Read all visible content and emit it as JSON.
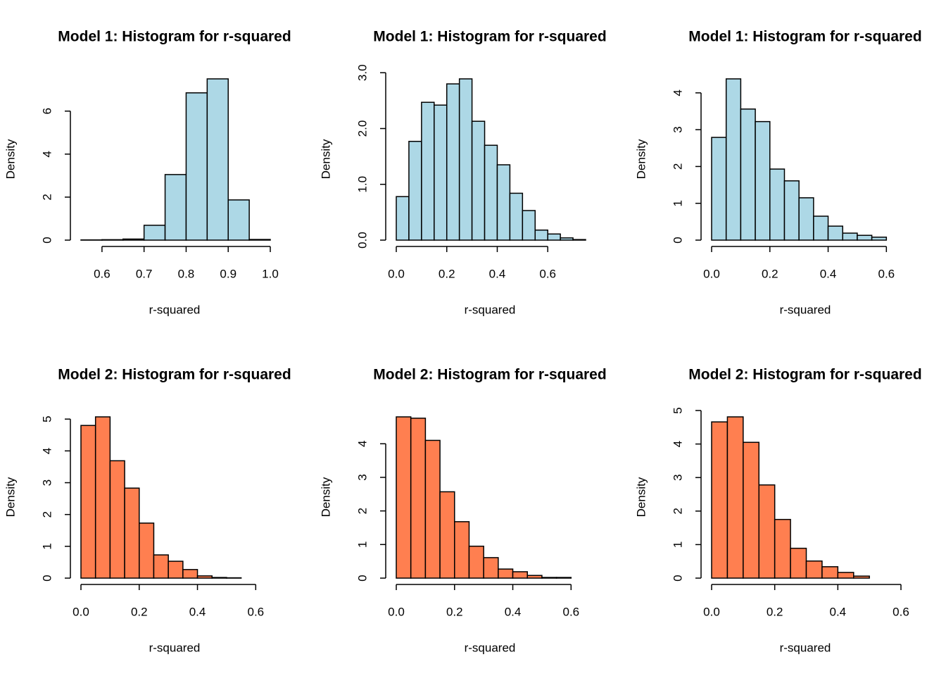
{
  "chart_data": [
    {
      "type": "histogram",
      "title": "Model 1: Histogram for r-squared",
      "xlabel": "r-squared",
      "ylabel": "Density",
      "color": "#add8e6",
      "bins": [
        0.55,
        0.6,
        0.65,
        0.7,
        0.75,
        0.8,
        0.85,
        0.9,
        0.95,
        1.0
      ],
      "values": [
        0.01,
        0.02,
        0.05,
        0.69,
        3.05,
        6.85,
        7.5,
        1.87,
        0.03
      ],
      "xlim": [
        0.55,
        1.0
      ],
      "ylim": [
        0,
        7.5
      ],
      "xticks": [
        0.6,
        0.7,
        0.8,
        0.9,
        {
          "value": 1.0,
          "label": "1.0"
        }
      ],
      "yticks": [
        0,
        2,
        4,
        6
      ]
    },
    {
      "type": "histogram",
      "title": "Model 1: Histogram for r-squared",
      "xlabel": "r-squared",
      "ylabel": "Density",
      "color": "#add8e6",
      "bins": [
        0,
        0.05,
        0.1,
        0.15,
        0.2,
        0.25,
        0.3,
        0.35,
        0.4,
        0.45,
        0.5,
        0.55,
        0.6,
        0.65,
        0.7,
        0.75
      ],
      "values": [
        0.78,
        1.77,
        2.47,
        2.42,
        2.8,
        2.89,
        2.13,
        1.7,
        1.35,
        0.84,
        0.53,
        0.18,
        0.11,
        0.04,
        0.01
      ],
      "xlim": [
        0,
        0.75
      ],
      "ylim": [
        0,
        2.89
      ],
      "xticks": [
        {
          "value": 0,
          "label": "0.0"
        },
        0.2,
        0.4,
        0.6
      ],
      "yticks": [
        {
          "value": 0,
          "label": "0.0"
        },
        {
          "value": 1,
          "label": "1.0"
        },
        {
          "value": 2,
          "label": "2.0"
        },
        {
          "value": 3,
          "label": "3.0"
        }
      ]
    },
    {
      "type": "histogram",
      "title": "Model 1: Histogram for r-squared",
      "xlabel": "r-squared",
      "ylabel": "Density",
      "color": "#add8e6",
      "bins": [
        0,
        0.05,
        0.1,
        0.15,
        0.2,
        0.25,
        0.3,
        0.35,
        0.4,
        0.45,
        0.5,
        0.55,
        0.6
      ],
      "values": [
        2.79,
        4.38,
        3.56,
        3.22,
        1.93,
        1.61,
        1.15,
        0.65,
        0.38,
        0.19,
        0.13,
        0.08
      ],
      "xlim": [
        0,
        0.65
      ],
      "ylim": [
        0,
        4.38
      ],
      "xticks": [
        {
          "value": 0,
          "label": "0.0"
        },
        0.2,
        0.4,
        0.6
      ],
      "yticks": [
        0,
        1,
        2,
        3,
        4
      ]
    },
    {
      "type": "histogram",
      "title": "Model 2: Histogram for r-squared",
      "xlabel": "r-squared",
      "ylabel": "Density",
      "color": "#ff7f50",
      "bins": [
        0,
        0.05,
        0.1,
        0.15,
        0.2,
        0.25,
        0.3,
        0.35,
        0.4,
        0.45,
        0.5,
        0.55,
        0.6,
        0.65
      ],
      "values": [
        4.8,
        5.07,
        3.69,
        2.83,
        1.73,
        0.73,
        0.53,
        0.27,
        0.07,
        0.02,
        0.01,
        0,
        0
      ],
      "xlim": [
        0,
        0.65
      ],
      "ylim": [
        0,
        5.07
      ],
      "xticks": [
        {
          "value": 0,
          "label": "0.0"
        },
        0.2,
        0.4,
        0.6
      ],
      "yticks": [
        0,
        1,
        2,
        3,
        4,
        5
      ]
    },
    {
      "type": "histogram",
      "title": "Model 2: Histogram for r-squared",
      "xlabel": "r-squared",
      "ylabel": "Density",
      "color": "#ff7f50",
      "bins": [
        0,
        0.05,
        0.1,
        0.15,
        0.2,
        0.25,
        0.3,
        0.35,
        0.4,
        0.45,
        0.5,
        0.55,
        0.6,
        0.65
      ],
      "values": [
        4.8,
        4.76,
        4.1,
        2.57,
        1.68,
        0.95,
        0.61,
        0.27,
        0.19,
        0.08,
        0.02,
        0.02,
        0
      ],
      "xlim": [
        0,
        0.65
      ],
      "ylim": [
        0,
        4.8
      ],
      "xticks": [
        {
          "value": 0,
          "label": "0.0"
        },
        0.2,
        0.4,
        0.6
      ],
      "yticks": [
        0,
        1,
        2,
        3,
        4
      ]
    },
    {
      "type": "histogram",
      "title": "Model 2: Histogram for r-squared",
      "xlabel": "r-squared",
      "ylabel": "Density",
      "color": "#ff7f50",
      "bins": [
        0,
        0.05,
        0.1,
        0.15,
        0.2,
        0.25,
        0.3,
        0.35,
        0.4,
        0.45,
        0.5,
        0.55,
        0.6
      ],
      "values": [
        4.66,
        4.81,
        4.05,
        2.78,
        1.75,
        0.89,
        0.51,
        0.34,
        0.17,
        0.06,
        0,
        0
      ],
      "xlim": [
        0,
        0.6
      ],
      "ylim": [
        0,
        4.81
      ],
      "xticks": [
        {
          "value": 0,
          "label": "0.0"
        },
        0.2,
        0.4,
        0.6
      ],
      "yticks": [
        0,
        1,
        2,
        3,
        4,
        5
      ]
    }
  ]
}
